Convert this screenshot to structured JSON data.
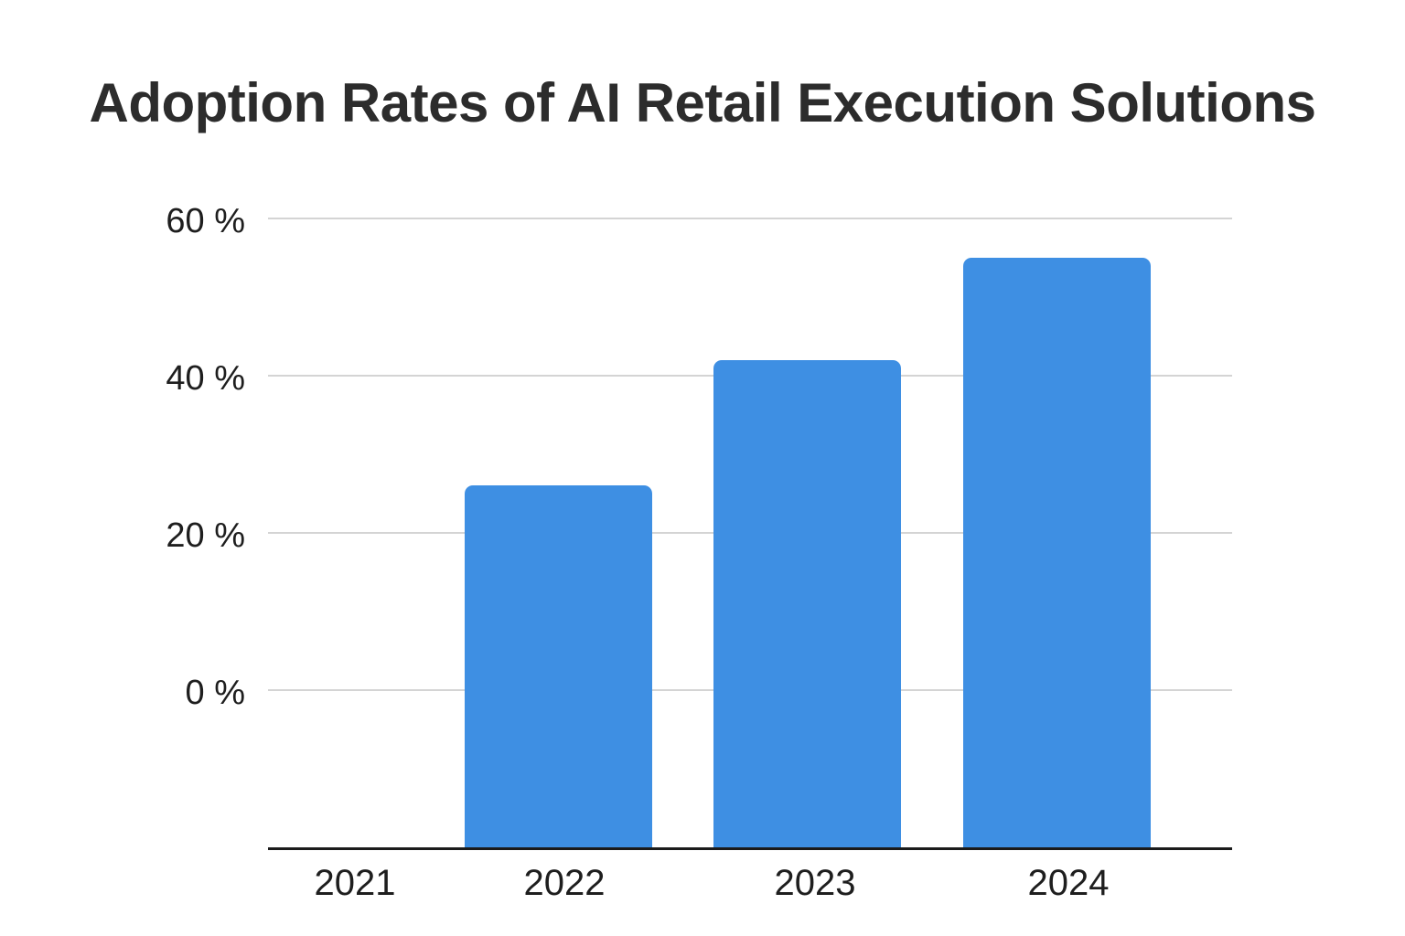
{
  "chart_data": {
    "type": "bar",
    "title": "Adoption Rates of AI Retail Execution Solutions",
    "categories": [
      "2021",
      "2022",
      "2023",
      "2024"
    ],
    "values": [
      null,
      26,
      42,
      55
    ],
    "unit": "%",
    "y_ticks": [
      0,
      20,
      40,
      60
    ],
    "y_tick_labels": [
      "0 %",
      "20 %",
      "40 %",
      "60 %"
    ],
    "ylim": [
      -20,
      60
    ],
    "xlabel": "",
    "ylabel": "",
    "grid": true,
    "legend": false,
    "bar_color": "#3E8FE3"
  },
  "colors": {
    "background": "#ffffff",
    "title_text": "#2c2c2c",
    "tick_text": "#1e1e1e",
    "gridline": "#d4d4d4",
    "axis_line": "#1b1b1b",
    "bar": "#3E8FE3"
  }
}
